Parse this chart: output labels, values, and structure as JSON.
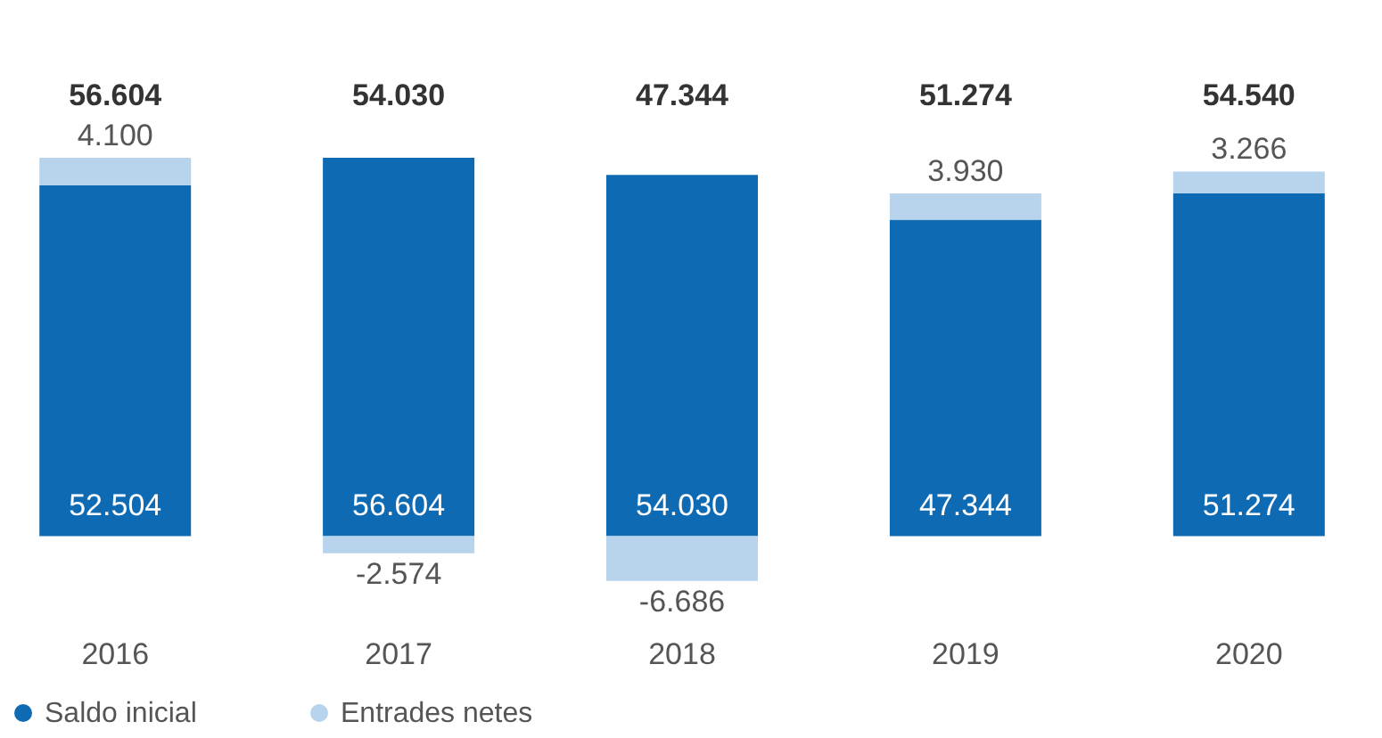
{
  "chart_data": {
    "type": "bar",
    "stacked": true,
    "categories": [
      "2016",
      "2017",
      "2018",
      "2019",
      "2020"
    ],
    "series": [
      {
        "name": "Saldo inicial",
        "color": "#0f6ab4",
        "values": [
          52504,
          56604,
          54030,
          47344,
          51274
        ],
        "value_labels": [
          "52.504",
          "56.604",
          "54.030",
          "47.344",
          "51.274"
        ]
      },
      {
        "name": "Entrades netes",
        "color": "#b8d3ec",
        "values": [
          4100,
          -2574,
          -6686,
          3930,
          3266
        ],
        "value_labels": [
          "4.100",
          "-2.574",
          "-6.686",
          "3.930",
          "3.266"
        ]
      }
    ],
    "totals": [
      "56.604",
      "54.030",
      "47.344",
      "51.274",
      "54.540"
    ],
    "ylim": [
      -7000,
      57000
    ],
    "grid": false,
    "legend": "bottom left"
  }
}
